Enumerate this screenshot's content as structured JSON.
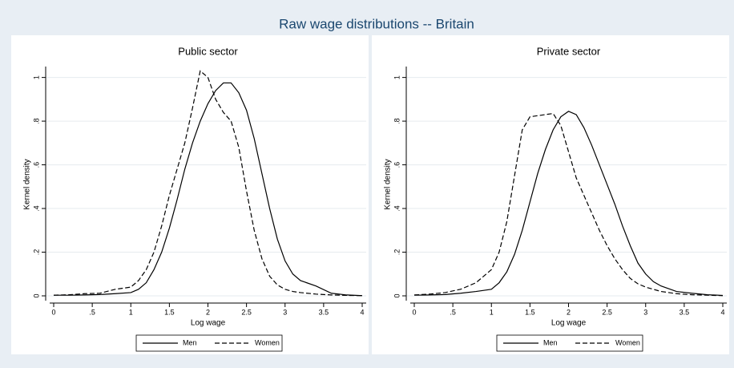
{
  "title": "Raw wage distributions -- Britain",
  "chart_data": [
    {
      "type": "line",
      "title": "Public sector",
      "x_label": "Log wage",
      "y_label": "Kernel density",
      "x": [
        0,
        0.2,
        0.4,
        0.6,
        0.8,
        1,
        1.1,
        1.2,
        1.3,
        1.4,
        1.5,
        1.6,
        1.7,
        1.8,
        1.9,
        2,
        2.1,
        2.2,
        2.3,
        2.4,
        2.5,
        2.6,
        2.7,
        2.8,
        2.9,
        3,
        3.1,
        3.2,
        3.4,
        3.6,
        3.8,
        4
      ],
      "series": [
        {
          "name": "Men",
          "color": "#000000",
          "style": "solid",
          "values": [
            0.003,
            0.003,
            0.004,
            0.006,
            0.01,
            0.015,
            0.03,
            0.06,
            0.12,
            0.2,
            0.31,
            0.44,
            0.58,
            0.7,
            0.8,
            0.88,
            0.94,
            0.975,
            0.975,
            0.93,
            0.85,
            0.72,
            0.56,
            0.4,
            0.26,
            0.16,
            0.1,
            0.07,
            0.045,
            0.012,
            0.004,
            0.001
          ]
        },
        {
          "name": "Women",
          "color": "#000000",
          "style": "dashed",
          "values": [
            0.003,
            0.005,
            0.01,
            0.012,
            0.03,
            0.04,
            0.07,
            0.12,
            0.2,
            0.32,
            0.46,
            0.58,
            0.7,
            0.86,
            1.03,
            1.0,
            0.9,
            0.84,
            0.8,
            0.68,
            0.48,
            0.3,
            0.17,
            0.09,
            0.05,
            0.03,
            0.02,
            0.015,
            0.008,
            0.004,
            0.002,
            0.001
          ]
        }
      ],
      "xlim": [
        0,
        4
      ],
      "ylim": [
        0,
        1.05
      ],
      "xticks": [
        0,
        {
          "value": 0.5,
          "label": ".5"
        },
        1,
        1.5,
        2,
        2.5,
        3,
        3.5,
        4
      ],
      "yticks": [
        0,
        {
          "value": 0.2,
          "label": ".2"
        },
        {
          "value": 0.4,
          "label": ".4"
        },
        {
          "value": 0.6,
          "label": ".6"
        },
        {
          "value": 0.8,
          "label": ".8"
        },
        1
      ],
      "grid": true
    },
    {
      "type": "line",
      "title": "Private sector",
      "x_label": "Log wage",
      "y_label": "Kernel density",
      "x": [
        0,
        0.2,
        0.4,
        0.6,
        0.8,
        1,
        1.1,
        1.2,
        1.3,
        1.4,
        1.5,
        1.6,
        1.7,
        1.8,
        1.9,
        2,
        2.1,
        2.2,
        2.3,
        2.4,
        2.5,
        2.6,
        2.7,
        2.8,
        2.9,
        3,
        3.1,
        3.2,
        3.4,
        3.6,
        3.8,
        4
      ],
      "series": [
        {
          "name": "Men",
          "color": "#000000",
          "style": "solid",
          "values": [
            0.003,
            0.004,
            0.006,
            0.012,
            0.02,
            0.03,
            0.06,
            0.11,
            0.19,
            0.3,
            0.43,
            0.56,
            0.67,
            0.76,
            0.82,
            0.845,
            0.83,
            0.77,
            0.69,
            0.6,
            0.51,
            0.42,
            0.32,
            0.23,
            0.15,
            0.1,
            0.065,
            0.045,
            0.02,
            0.012,
            0.005,
            0.002
          ]
        },
        {
          "name": "Women",
          "color": "#000000",
          "style": "dashed",
          "values": [
            0.004,
            0.008,
            0.015,
            0.03,
            0.06,
            0.12,
            0.2,
            0.34,
            0.55,
            0.76,
            0.82,
            0.825,
            0.83,
            0.835,
            0.78,
            0.66,
            0.54,
            0.46,
            0.38,
            0.3,
            0.23,
            0.17,
            0.12,
            0.08,
            0.055,
            0.04,
            0.03,
            0.02,
            0.01,
            0.005,
            0.003,
            0.001
          ]
        }
      ],
      "xlim": [
        0,
        4
      ],
      "ylim": [
        0,
        1.05
      ],
      "xticks": [
        0,
        {
          "value": 0.5,
          "label": ".5"
        },
        1,
        1.5,
        2,
        2.5,
        3,
        3.5,
        4
      ],
      "yticks": [
        0,
        {
          "value": 0.2,
          "label": ".2"
        },
        {
          "value": 0.4,
          "label": ".4"
        },
        {
          "value": 0.6,
          "label": ".6"
        },
        {
          "value": 0.8,
          "label": ".8"
        },
        1
      ],
      "grid": true
    }
  ]
}
